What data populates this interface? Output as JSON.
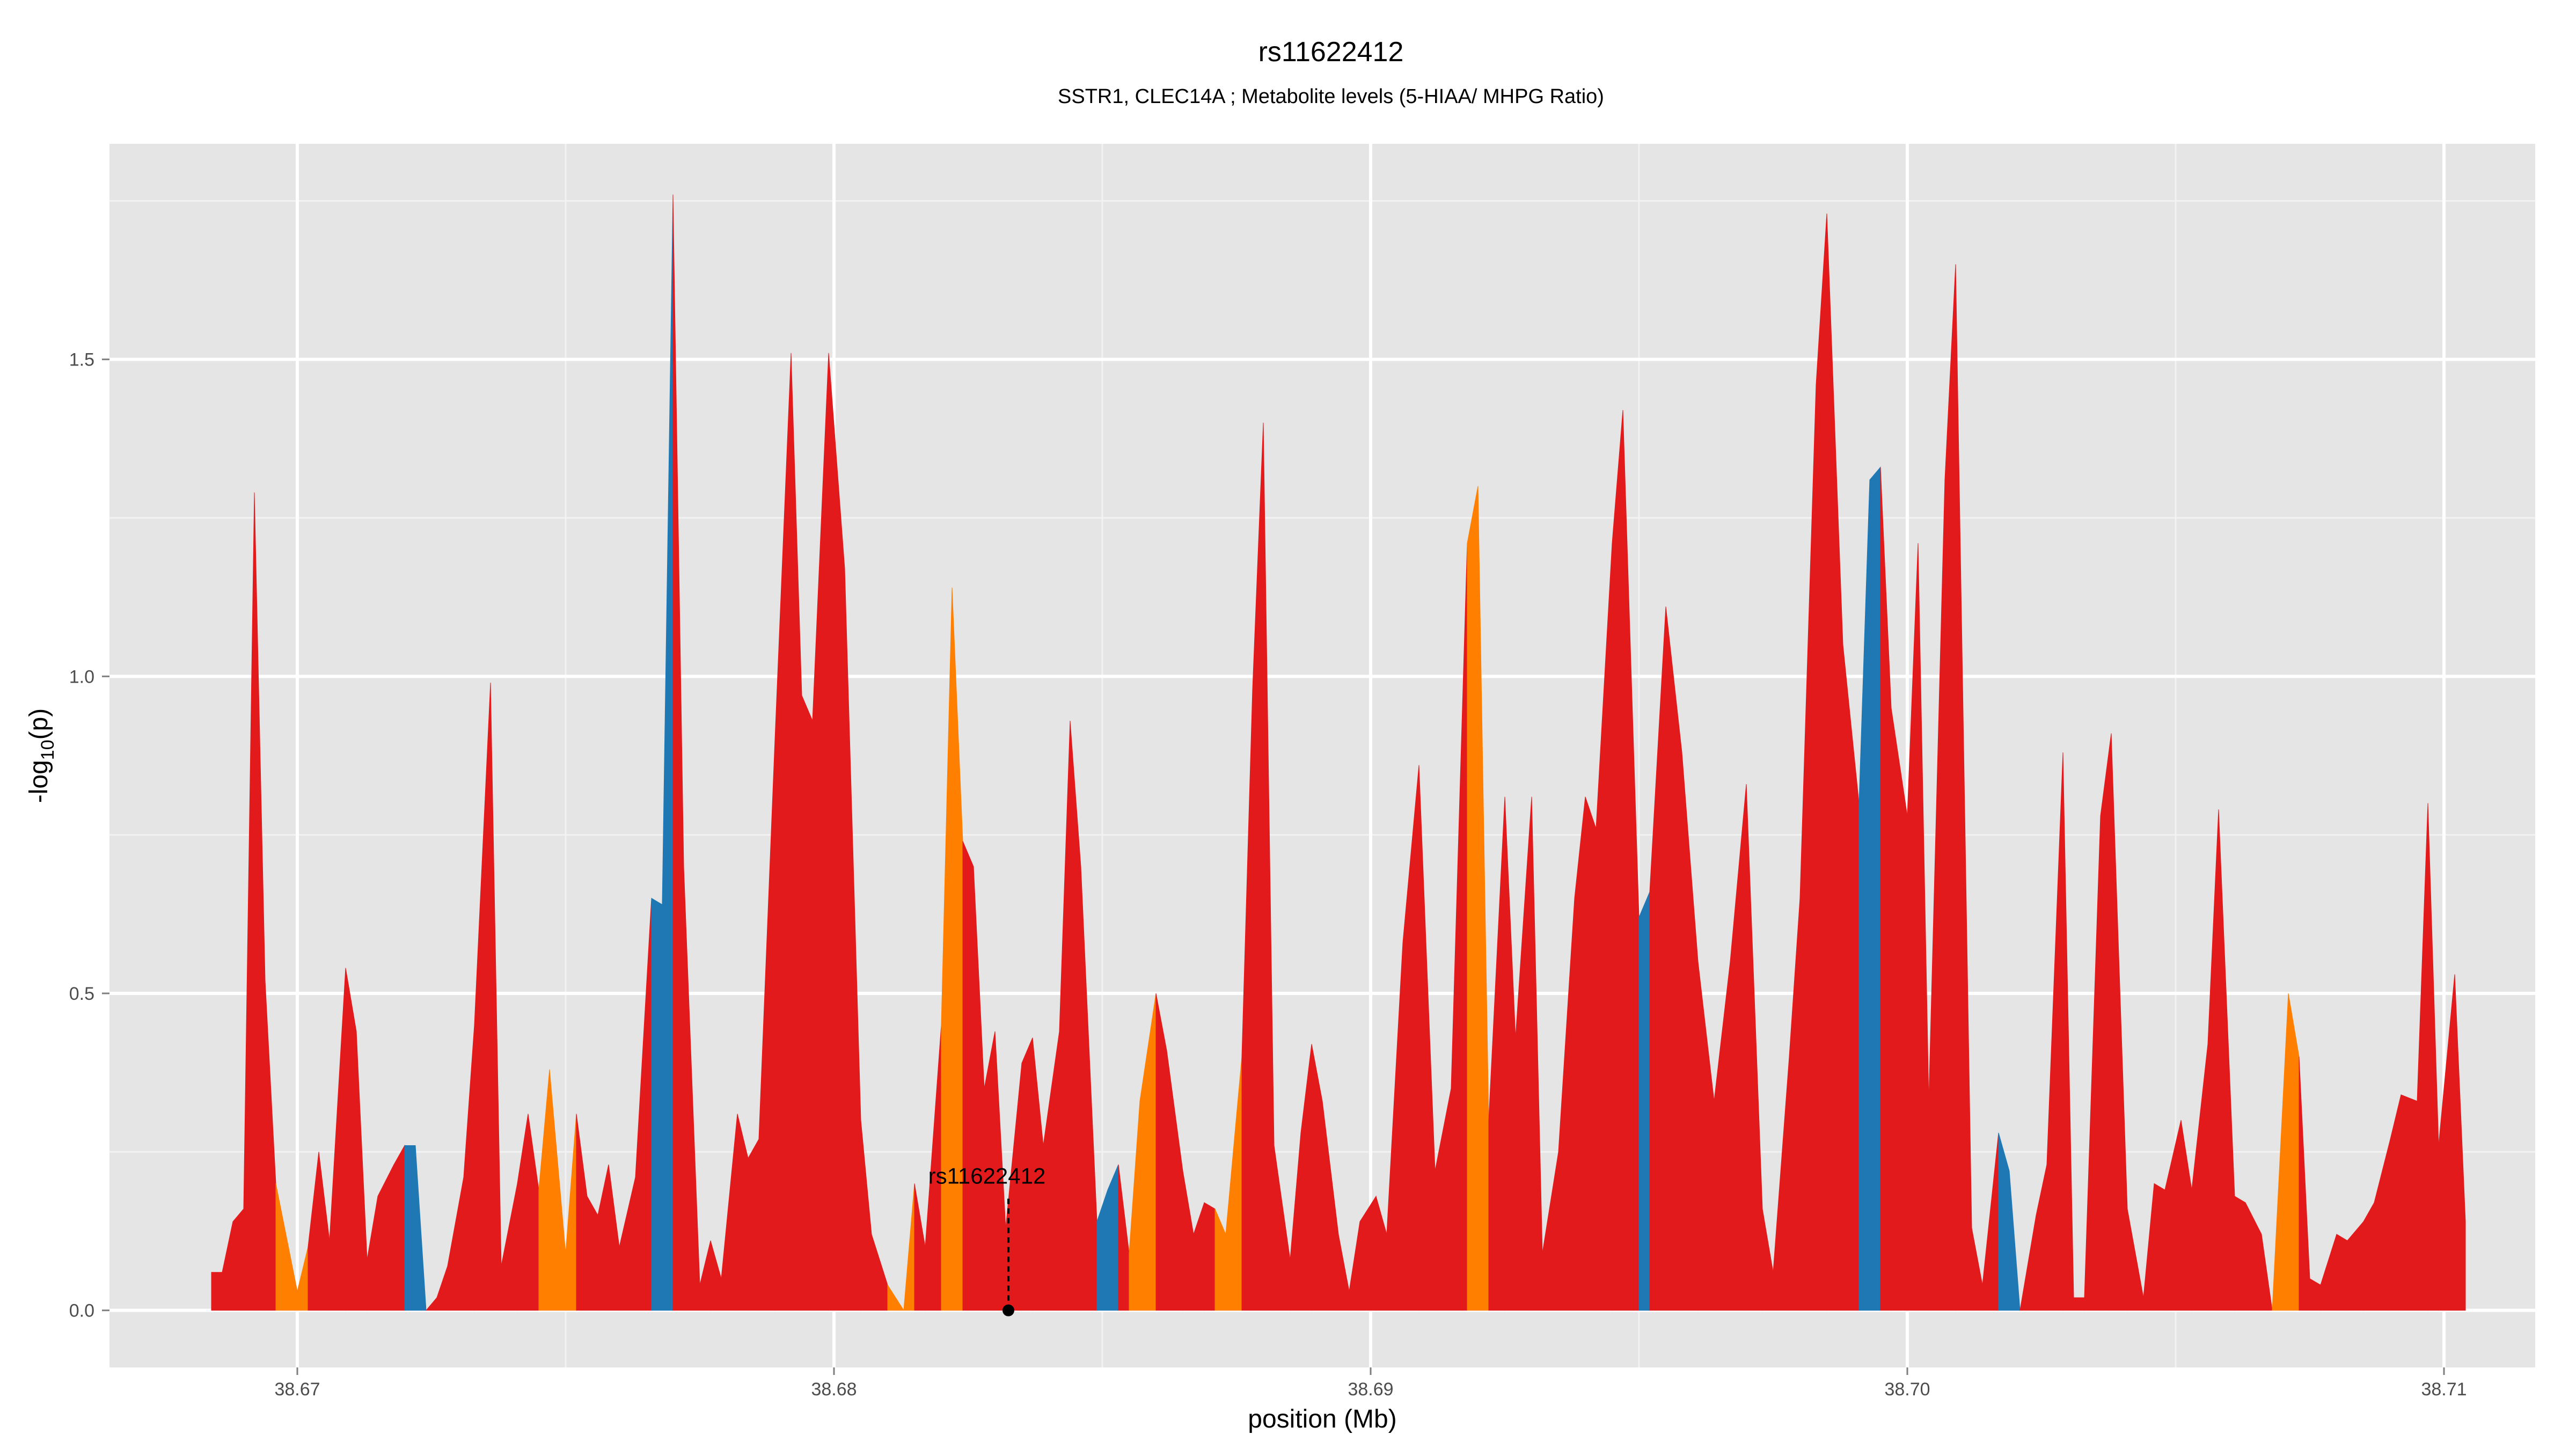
{
  "chart_data": {
    "type": "area",
    "title": "rs11622412",
    "subtitle": "SSTR1, CLEC14A ; Metabolite levels (5-HIAA/ MHPG Ratio)",
    "xlabel": "position (Mb)",
    "ylabel_main": "-log",
    "ylabel_sub": "10",
    "ylabel_tail": "(p)",
    "xlim": [
      38.6665,
      38.7117
    ],
    "ylim": [
      -0.09,
      1.84
    ],
    "x_ticks": [
      38.67,
      38.68,
      38.69,
      38.7,
      38.71
    ],
    "x_tick_labels": [
      "38.67",
      "38.68",
      "38.69",
      "38.70",
      "38.71"
    ],
    "y_ticks": [
      0.0,
      0.5,
      1.0,
      1.5
    ],
    "y_tick_labels": [
      "0.0",
      "0.5",
      "1.0",
      "1.5"
    ],
    "grid": true,
    "colors": {
      "red": "#e31a1c",
      "orange": "#ff7f00",
      "blue": "#1f78b4",
      "panel": "#e5e5e5",
      "grid": "#ffffff"
    },
    "annotation": {
      "label": "rs11622412",
      "x": 38.68325,
      "y": 0.0
    },
    "points": [
      [
        38.6684,
        0.06,
        "red"
      ],
      [
        38.6686,
        0.06,
        "red"
      ],
      [
        38.6688,
        0.14,
        "red"
      ],
      [
        38.669,
        0.16,
        "red"
      ],
      [
        38.6692,
        1.29,
        "red"
      ],
      [
        38.6694,
        0.52,
        "red"
      ],
      [
        38.6696,
        0.2,
        "red"
      ],
      [
        38.67,
        0.03,
        "orange"
      ],
      [
        38.6702,
        0.1,
        "orange"
      ],
      [
        38.6704,
        0.25,
        "red"
      ],
      [
        38.6706,
        0.11,
        "red"
      ],
      [
        38.6709,
        0.54,
        "red"
      ],
      [
        38.6711,
        0.44,
        "red"
      ],
      [
        38.6713,
        0.08,
        "red"
      ],
      [
        38.6715,
        0.18,
        "red"
      ],
      [
        38.6718,
        0.23,
        "red"
      ],
      [
        38.672,
        0.26,
        "red"
      ],
      [
        38.6722,
        0.26,
        "blue"
      ],
      [
        38.6724,
        0.0,
        "blue"
      ],
      [
        38.6726,
        0.02,
        "red"
      ],
      [
        38.6728,
        0.07,
        "red"
      ],
      [
        38.6731,
        0.21,
        "red"
      ],
      [
        38.6733,
        0.45,
        "red"
      ],
      [
        38.6736,
        0.99,
        "red"
      ],
      [
        38.6738,
        0.07,
        "red"
      ],
      [
        38.6741,
        0.2,
        "red"
      ],
      [
        38.6743,
        0.31,
        "red"
      ],
      [
        38.6745,
        0.19,
        "red"
      ],
      [
        38.6747,
        0.38,
        "orange"
      ],
      [
        38.675,
        0.09,
        "orange"
      ],
      [
        38.6752,
        0.31,
        "orange"
      ],
      [
        38.6754,
        0.18,
        "red"
      ],
      [
        38.6756,
        0.15,
        "red"
      ],
      [
        38.6758,
        0.23,
        "red"
      ],
      [
        38.676,
        0.1,
        "red"
      ],
      [
        38.6763,
        0.21,
        "red"
      ],
      [
        38.6766,
        0.65,
        "red"
      ],
      [
        38.6768,
        0.64,
        "blue"
      ],
      [
        38.677,
        1.76,
        "blue"
      ],
      [
        38.6772,
        0.7,
        "red"
      ],
      [
        38.6775,
        0.04,
        "red"
      ],
      [
        38.6777,
        0.11,
        "red"
      ],
      [
        38.6779,
        0.05,
        "red"
      ],
      [
        38.6782,
        0.31,
        "red"
      ],
      [
        38.6784,
        0.24,
        "red"
      ],
      [
        38.6786,
        0.27,
        "red"
      ],
      [
        38.6789,
        0.9,
        "red"
      ],
      [
        38.6792,
        1.51,
        "red"
      ],
      [
        38.6794,
        0.97,
        "red"
      ],
      [
        38.6796,
        0.93,
        "red"
      ],
      [
        38.6799,
        1.51,
        "red"
      ],
      [
        38.6802,
        1.17,
        "red"
      ],
      [
        38.6805,
        0.3,
        "red"
      ],
      [
        38.6807,
        0.12,
        "red"
      ],
      [
        38.681,
        0.04,
        "red"
      ],
      [
        38.6813,
        0.0,
        "orange"
      ],
      [
        38.6815,
        0.2,
        "orange"
      ],
      [
        38.6817,
        0.1,
        "red"
      ],
      [
        38.682,
        0.45,
        "red"
      ],
      [
        38.6822,
        1.14,
        "orange"
      ],
      [
        38.6824,
        0.74,
        "orange"
      ],
      [
        38.6826,
        0.7,
        "red"
      ],
      [
        38.6828,
        0.35,
        "red"
      ],
      [
        38.683,
        0.44,
        "red"
      ],
      [
        38.6832,
        0.13,
        "red"
      ],
      [
        38.6835,
        0.39,
        "red"
      ],
      [
        38.6837,
        0.43,
        "red"
      ],
      [
        38.6839,
        0.26,
        "red"
      ],
      [
        38.6842,
        0.44,
        "red"
      ],
      [
        38.6844,
        0.93,
        "red"
      ],
      [
        38.6846,
        0.7,
        "red"
      ],
      [
        38.6849,
        0.14,
        "red"
      ],
      [
        38.6851,
        0.19,
        "blue"
      ],
      [
        38.6853,
        0.23,
        "blue"
      ],
      [
        38.6855,
        0.09,
        "red"
      ],
      [
        38.6857,
        0.33,
        "orange"
      ],
      [
        38.686,
        0.5,
        "orange"
      ],
      [
        38.6862,
        0.41,
        "red"
      ],
      [
        38.6865,
        0.22,
        "red"
      ],
      [
        38.6867,
        0.12,
        "red"
      ],
      [
        38.6869,
        0.17,
        "red"
      ],
      [
        38.6871,
        0.16,
        "red"
      ],
      [
        38.6873,
        0.12,
        "orange"
      ],
      [
        38.6876,
        0.4,
        "orange"
      ],
      [
        38.6878,
        0.98,
        "red"
      ],
      [
        38.688,
        1.4,
        "red"
      ],
      [
        38.6882,
        0.26,
        "red"
      ],
      [
        38.6885,
        0.08,
        "red"
      ],
      [
        38.6887,
        0.28,
        "red"
      ],
      [
        38.6889,
        0.42,
        "red"
      ],
      [
        38.6891,
        0.33,
        "red"
      ],
      [
        38.6894,
        0.12,
        "red"
      ],
      [
        38.6896,
        0.03,
        "red"
      ],
      [
        38.6898,
        0.14,
        "red"
      ],
      [
        38.6901,
        0.18,
        "red"
      ],
      [
        38.6903,
        0.12,
        "red"
      ],
      [
        38.6906,
        0.58,
        "red"
      ],
      [
        38.6909,
        0.86,
        "red"
      ],
      [
        38.6912,
        0.22,
        "red"
      ],
      [
        38.6915,
        0.35,
        "red"
      ],
      [
        38.6918,
        1.21,
        "red"
      ],
      [
        38.692,
        1.3,
        "orange"
      ],
      [
        38.6922,
        0.3,
        "orange"
      ],
      [
        38.6925,
        0.81,
        "red"
      ],
      [
        38.6927,
        0.43,
        "red"
      ],
      [
        38.693,
        0.81,
        "red"
      ],
      [
        38.6932,
        0.09,
        "red"
      ],
      [
        38.6935,
        0.25,
        "red"
      ],
      [
        38.6938,
        0.65,
        "red"
      ],
      [
        38.694,
        0.81,
        "red"
      ],
      [
        38.6942,
        0.76,
        "red"
      ],
      [
        38.6945,
        1.21,
        "red"
      ],
      [
        38.6947,
        1.42,
        "red"
      ],
      [
        38.695,
        0.62,
        "red"
      ],
      [
        38.6952,
        0.66,
        "blue"
      ],
      [
        38.6955,
        1.11,
        "red"
      ],
      [
        38.6958,
        0.88,
        "red"
      ],
      [
        38.6961,
        0.55,
        "red"
      ],
      [
        38.6964,
        0.33,
        "red"
      ],
      [
        38.6967,
        0.55,
        "red"
      ],
      [
        38.697,
        0.83,
        "red"
      ],
      [
        38.6973,
        0.16,
        "red"
      ],
      [
        38.6975,
        0.06,
        "red"
      ],
      [
        38.6978,
        0.4,
        "red"
      ],
      [
        38.698,
        0.65,
        "red"
      ],
      [
        38.6983,
        1.46,
        "red"
      ],
      [
        38.6985,
        1.73,
        "red"
      ],
      [
        38.6988,
        1.05,
        "red"
      ],
      [
        38.6991,
        0.8,
        "red"
      ],
      [
        38.6993,
        1.31,
        "blue"
      ],
      [
        38.6995,
        1.33,
        "blue"
      ],
      [
        38.6997,
        0.95,
        "red"
      ],
      [
        38.7,
        0.78,
        "red"
      ],
      [
        38.7002,
        1.21,
        "red"
      ],
      [
        38.7004,
        0.33,
        "red"
      ],
      [
        38.7007,
        1.31,
        "red"
      ],
      [
        38.7009,
        1.65,
        "red"
      ],
      [
        38.7012,
        0.13,
        "red"
      ],
      [
        38.7014,
        0.04,
        "red"
      ],
      [
        38.7017,
        0.28,
        "red"
      ],
      [
        38.7019,
        0.22,
        "blue"
      ],
      [
        38.7021,
        0.0,
        "blue"
      ],
      [
        38.7024,
        0.15,
        "red"
      ],
      [
        38.7026,
        0.23,
        "red"
      ],
      [
        38.7029,
        0.88,
        "red"
      ],
      [
        38.7031,
        0.02,
        "red"
      ],
      [
        38.7033,
        0.02,
        "red"
      ],
      [
        38.7036,
        0.78,
        "red"
      ],
      [
        38.7038,
        0.91,
        "red"
      ],
      [
        38.7041,
        0.16,
        "red"
      ],
      [
        38.7044,
        0.02,
        "red"
      ],
      [
        38.7046,
        0.2,
        "red"
      ],
      [
        38.7048,
        0.19,
        "red"
      ],
      [
        38.7051,
        0.3,
        "red"
      ],
      [
        38.7053,
        0.19,
        "red"
      ],
      [
        38.7056,
        0.42,
        "red"
      ],
      [
        38.7058,
        0.79,
        "red"
      ],
      [
        38.7061,
        0.18,
        "red"
      ],
      [
        38.7063,
        0.17,
        "red"
      ],
      [
        38.7066,
        0.12,
        "red"
      ],
      [
        38.7068,
        0.0,
        "red"
      ],
      [
        38.7071,
        0.5,
        "orange"
      ],
      [
        38.7073,
        0.4,
        "orange"
      ],
      [
        38.7075,
        0.05,
        "red"
      ],
      [
        38.7077,
        0.04,
        "red"
      ],
      [
        38.708,
        0.12,
        "red"
      ],
      [
        38.7082,
        0.11,
        "red"
      ],
      [
        38.7085,
        0.14,
        "red"
      ],
      [
        38.7087,
        0.17,
        "red"
      ],
      [
        38.709,
        0.27,
        "red"
      ],
      [
        38.7092,
        0.34,
        "red"
      ],
      [
        38.7095,
        0.33,
        "red"
      ],
      [
        38.7097,
        0.8,
        "red"
      ],
      [
        38.7099,
        0.26,
        "red"
      ],
      [
        38.7102,
        0.53,
        "red"
      ],
      [
        38.7104,
        0.14,
        "red"
      ]
    ]
  }
}
